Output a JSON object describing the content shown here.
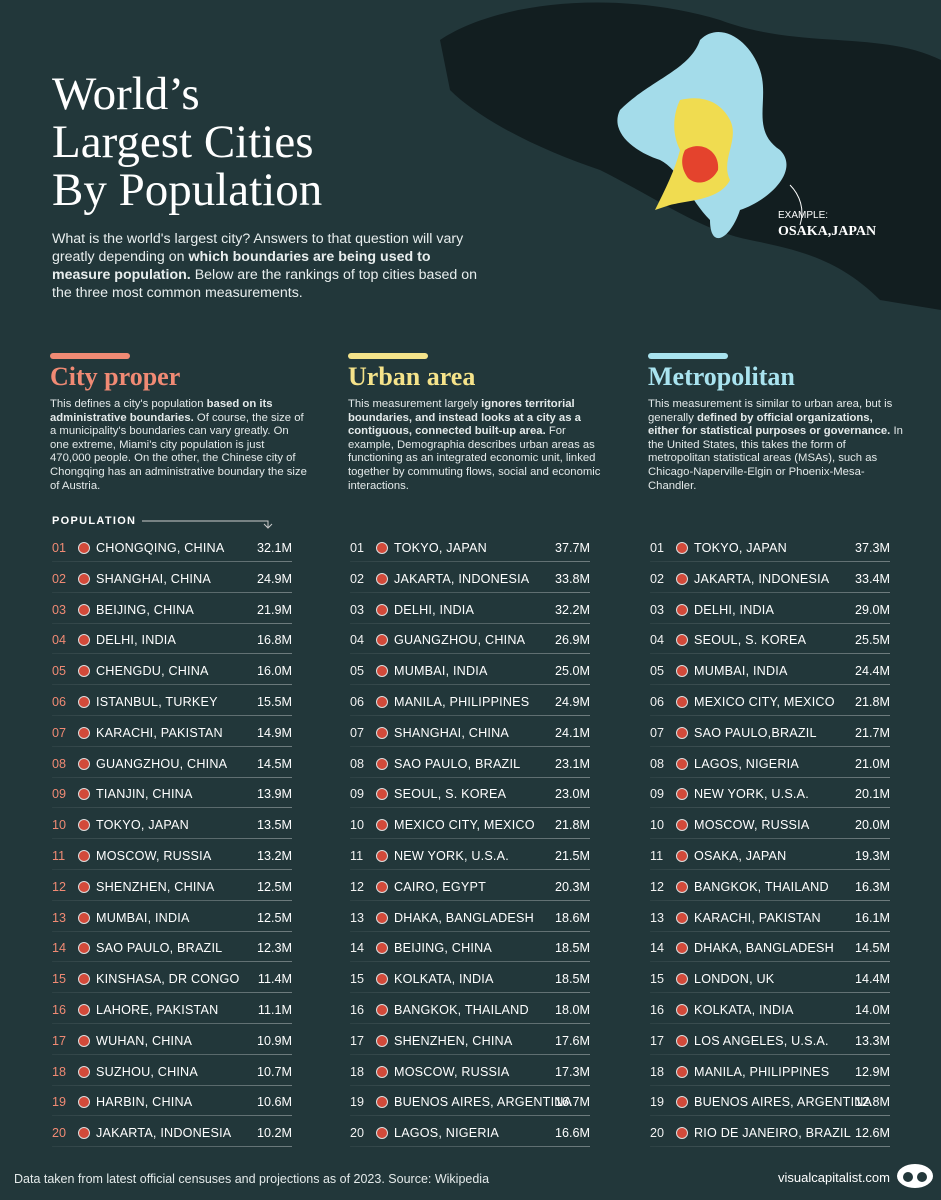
{
  "header": {
    "title_lines": [
      "World’s",
      "Largest Cities",
      "By Population"
    ],
    "intro": [
      {
        "text": "What is the world's largest city? Answers to that question will vary greatly depending on ",
        "bold": false
      },
      {
        "text": "which boundaries are being used to measure population.",
        "bold": true
      },
      {
        "text": " Below are the rankings of top cities based on the three most common measurements.",
        "bold": false
      }
    ]
  },
  "map": {
    "example_label": "EXAMPLE:",
    "example_city": "OSAKA,JAPAN"
  },
  "population_label": "POPULATION",
  "columns": [
    {
      "title": "City proper",
      "color": "#f08a74",
      "description": [
        {
          "text": "This defines a city's population ",
          "bold": false
        },
        {
          "text": "based on its administrative boundaries.",
          "bold": true
        },
        {
          "text": " Of course, the size of a municipality's boundaries can vary greatly. On one extreme, Miami's city population is just 470,000 people. On the other, the Chinese city of Chongqing has an administrative boundary the size of Austria.",
          "bold": false
        }
      ],
      "rows": [
        [
          "01",
          "CHONGQING, CHINA",
          "32.1M"
        ],
        [
          "02",
          "SHANGHAI, CHINA",
          "24.9M"
        ],
        [
          "03",
          "BEIJING, CHINA",
          "21.9M"
        ],
        [
          "04",
          "DELHI, INDIA",
          "16.8M"
        ],
        [
          "05",
          "CHENGDU, CHINA",
          "16.0M"
        ],
        [
          "06",
          "ISTANBUL, TURKEY",
          "15.5M"
        ],
        [
          "07",
          "KARACHI, PAKISTAN",
          "14.9M"
        ],
        [
          "08",
          "GUANGZHOU, CHINA",
          "14.5M"
        ],
        [
          "09",
          "TIANJIN, CHINA",
          "13.9M"
        ],
        [
          "10",
          "TOKYO, JAPAN",
          "13.5M"
        ],
        [
          "11",
          "MOSCOW, RUSSIA",
          "13.2M"
        ],
        [
          "12",
          "SHENZHEN, CHINA",
          "12.5M"
        ],
        [
          "13",
          "MUMBAI, INDIA",
          "12.5M"
        ],
        [
          "14",
          "SAO PAULO, BRAZIL",
          "12.3M"
        ],
        [
          "15",
          "KINSHASA, DR CONGO",
          "11.4M"
        ],
        [
          "16",
          "LAHORE, PAKISTAN",
          "11.1M"
        ],
        [
          "17",
          "WUHAN, CHINA",
          "10.9M"
        ],
        [
          "18",
          "SUZHOU, CHINA",
          "10.7M"
        ],
        [
          "19",
          "HARBIN, CHINA",
          "10.6M"
        ],
        [
          "20",
          "JAKARTA, INDONESIA",
          "10.2M"
        ]
      ]
    },
    {
      "title": "Urban area",
      "color": "#f5e38a",
      "description": [
        {
          "text": "This measurement largely ",
          "bold": false
        },
        {
          "text": "ignores territorial boundaries, and instead looks at a city as a contiguous, connected built-up area.",
          "bold": true
        },
        {
          "text": " For example, Demographia describes urban areas as functioning as an integrated economic unit, linked together by commuting flows, social and economic interactions.",
          "bold": false
        }
      ],
      "rows": [
        [
          "01",
          "TOKYO, JAPAN",
          "37.7M"
        ],
        [
          "02",
          "JAKARTA, INDONESIA",
          "33.8M"
        ],
        [
          "03",
          "DELHI, INDIA",
          "32.2M"
        ],
        [
          "04",
          "GUANGZHOU, CHINA",
          "26.9M"
        ],
        [
          "05",
          "MUMBAI, INDIA",
          "25.0M"
        ],
        [
          "06",
          "MANILA, PHILIPPINES",
          "24.9M"
        ],
        [
          "07",
          "SHANGHAI, CHINA",
          "24.1M"
        ],
        [
          "08",
          "SAO PAULO, BRAZIL",
          "23.1M"
        ],
        [
          "09",
          "SEOUL, S. KOREA",
          "23.0M"
        ],
        [
          "10",
          "MEXICO CITY, MEXICO",
          "21.8M"
        ],
        [
          "11",
          "NEW YORK, U.S.A.",
          "21.5M"
        ],
        [
          "12",
          "CAIRO, EGYPT",
          "20.3M"
        ],
        [
          "13",
          "DHAKA, BANGLADESH",
          "18.6M"
        ],
        [
          "14",
          "BEIJING, CHINA",
          "18.5M"
        ],
        [
          "15",
          "KOLKATA, INDIA",
          "18.5M"
        ],
        [
          "16",
          "BANGKOK, THAILAND",
          "18.0M"
        ],
        [
          "17",
          "SHENZHEN, CHINA",
          "17.6M"
        ],
        [
          "18",
          "MOSCOW, RUSSIA",
          "17.3M"
        ],
        [
          "19",
          "BUENOS AIRES, ARGENTINA",
          "16.7M"
        ],
        [
          "20",
          "LAGOS, NIGERIA",
          "16.6M"
        ]
      ]
    },
    {
      "title": "Metropolitan",
      "color": "#a9e3ef",
      "description": [
        {
          "text": "This measurement is similar to urban area, but is generally ",
          "bold": false
        },
        {
          "text": "defined by official organizations, either for statistical purposes or governance.",
          "bold": true
        },
        {
          "text": " In the United States, this takes the form of metropolitan statistical areas (MSAs), such as Chicago-Naperville-Elgin or Phoenix-Mesa-Chandler.",
          "bold": false
        }
      ],
      "rows": [
        [
          "01",
          "TOKYO, JAPAN",
          "37.3M"
        ],
        [
          "02",
          "JAKARTA, INDONESIA",
          "33.4M"
        ],
        [
          "03",
          "DELHI, INDIA",
          "29.0M"
        ],
        [
          "04",
          "SEOUL, S. KOREA",
          "25.5M"
        ],
        [
          "05",
          "MUMBAI, INDIA",
          "24.4M"
        ],
        [
          "06",
          "MEXICO CITY, MEXICO",
          "21.8M"
        ],
        [
          "07",
          "SAO PAULO,BRAZIL",
          "21.7M"
        ],
        [
          "08",
          "LAGOS, NIGERIA",
          "21.0M"
        ],
        [
          "09",
          "NEW YORK, U.S.A.",
          "20.1M"
        ],
        [
          "10",
          "MOSCOW, RUSSIA",
          "20.0M"
        ],
        [
          "11",
          "OSAKA, JAPAN",
          "19.3M"
        ],
        [
          "12",
          "BANGKOK, THAILAND",
          "16.3M"
        ],
        [
          "13",
          "KARACHI, PAKISTAN",
          "16.1M"
        ],
        [
          "14",
          "DHAKA, BANGLADESH",
          "14.5M"
        ],
        [
          "15",
          "LONDON, UK",
          "14.4M"
        ],
        [
          "16",
          "KOLKATA, INDIA",
          "14.0M"
        ],
        [
          "17",
          "LOS ANGELES, U.S.A.",
          "13.3M"
        ],
        [
          "18",
          "MANILA, PHILIPPINES",
          "12.9M"
        ],
        [
          "19",
          "BUENOS AIRES, ARGENTINA",
          "12.8M"
        ],
        [
          "20",
          "RIO DE JANEIRO, BRAZIL",
          "12.6M"
        ]
      ]
    }
  ],
  "footer": {
    "source": "Data taken from latest official censuses and projections as of 2023. Source: Wikipedia",
    "brand": "visualcapitalist.com"
  }
}
